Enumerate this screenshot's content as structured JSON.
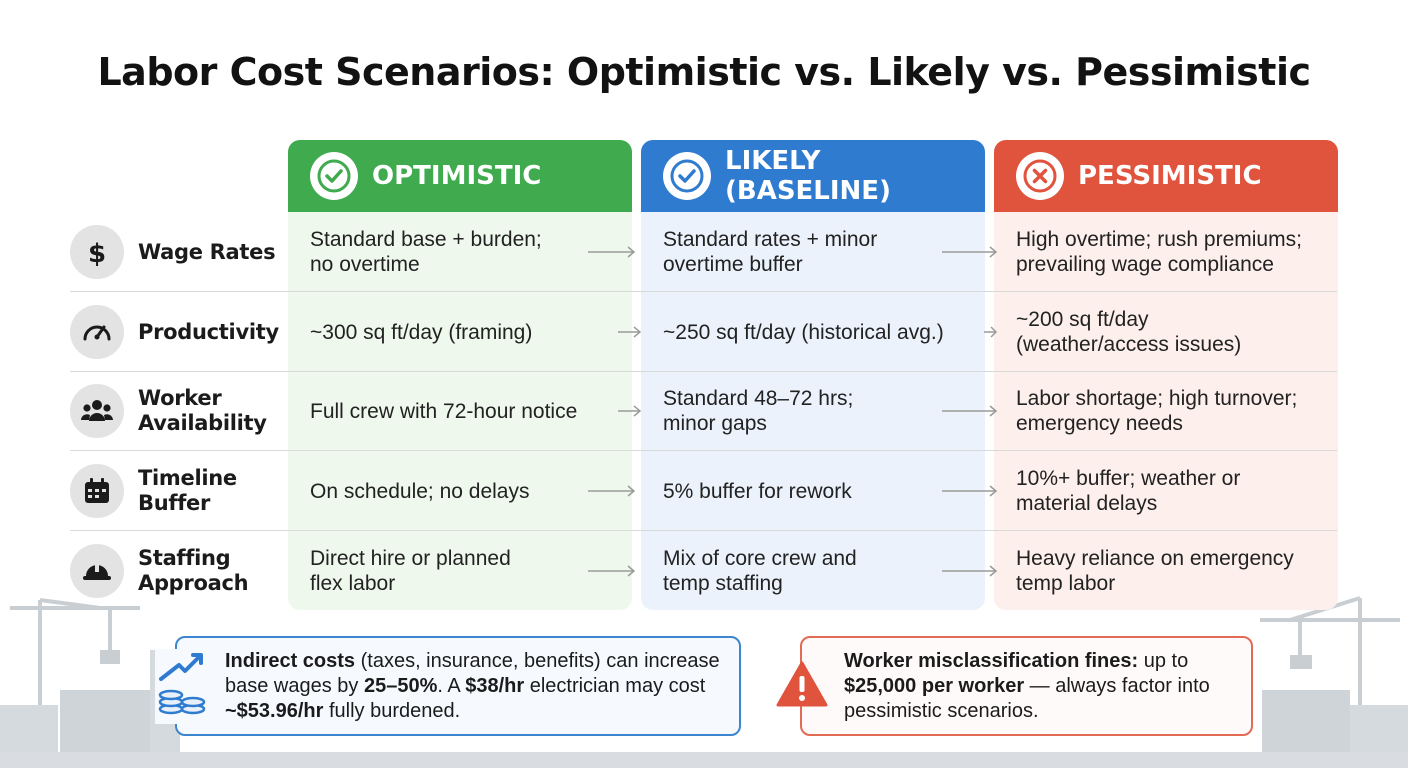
{
  "title": "Labor Cost Scenarios: Optimistic vs. Likely vs. Pessimistic",
  "columns": [
    {
      "label": "OPTIMISTIC",
      "icon": "check-circle-icon",
      "color": "#3faa4e"
    },
    {
      "label": "LIKELY (BASELINE)",
      "icon": "check-circle-icon",
      "color": "#2f7bd0"
    },
    {
      "label": "PESSIMISTIC",
      "icon": "x-circle-icon",
      "color": "#e0533d"
    }
  ],
  "rows": [
    {
      "label": "Wage Rates",
      "icon": "dollar-icon",
      "optimistic": "Standard base + burden;\nno overtime",
      "likely": "Standard rates + minor\novertime buffer",
      "pessimistic": "High overtime; rush premiums;\nprevailing wage compliance"
    },
    {
      "label": "Productivity",
      "icon": "speedometer-icon",
      "optimistic": "~300 sq ft/day (framing)",
      "likely": "~250 sq ft/day (historical avg.)",
      "pessimistic": "~200 sq ft/day\n(weather/access issues)"
    },
    {
      "label": "Worker\nAvailability",
      "icon": "people-icon",
      "optimistic": "Full crew with 72-hour notice",
      "likely": "Standard 48–72 hrs;\nminor gaps",
      "pessimistic": "Labor shortage; high turnover;\nemergency needs"
    },
    {
      "label": "Timeline\nBuffer",
      "icon": "calendar-icon",
      "optimistic": "On schedule; no delays",
      "likely": "5% buffer for rework",
      "pessimistic": "10%+ buffer; weather or\nmaterial delays"
    },
    {
      "label": "Staffing\nApproach",
      "icon": "hard-hat-icon",
      "optimistic": "Direct hire or planned\nflex labor",
      "likely": "Mix of core crew and\ntemp staffing",
      "pessimistic": "Heavy reliance on emergency\ntemp labor"
    }
  ],
  "info_callout": {
    "icon": "coins-growth-icon",
    "bold1": "Indirect costs",
    "text1": " (taxes, insurance, benefits) can increase base wages by ",
    "bold2": "25–50%",
    "text2": ". A ",
    "bold3": "$38/hr",
    "text3": " electrician may cost ",
    "bold4": "~$53.96/hr",
    "text4": " fully burdened."
  },
  "warn_callout": {
    "icon": "warning-icon",
    "bold1": "Worker misclassification fines:",
    "text1": " up to ",
    "bold2": "$25,000 per worker",
    "text2": " — always factor into pessimistic scenarios."
  }
}
